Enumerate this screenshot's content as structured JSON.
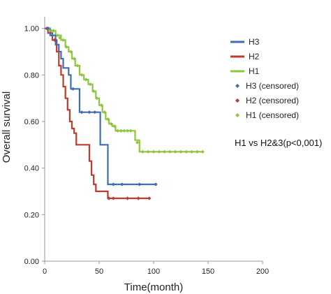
{
  "chart_data": {
    "type": "line",
    "title": "",
    "xlabel": "Time(month)",
    "ylabel": "Overall survival",
    "xlim": [
      0,
      200
    ],
    "ylim": [
      0,
      1.05
    ],
    "xticks": [
      "0",
      "50",
      "100",
      "150",
      "200"
    ],
    "yticks": [
      "0.00",
      "0.20",
      "0.40",
      "0.60",
      "0.80",
      "1.00"
    ],
    "grid": false,
    "legend_position": "right",
    "annotation": "H1 vs H2&3(p<0,001)",
    "series": [
      {
        "name": "H3",
        "color": "#3E6DB5",
        "steps": [
          [
            0,
            1.0
          ],
          [
            5,
            0.97
          ],
          [
            10,
            0.93
          ],
          [
            13,
            0.9
          ],
          [
            15,
            0.87
          ],
          [
            17,
            0.83
          ],
          [
            22,
            0.8
          ],
          [
            24,
            0.74
          ],
          [
            30,
            0.74
          ],
          [
            32,
            0.64
          ],
          [
            50,
            0.64
          ],
          [
            51,
            0.5
          ],
          [
            56,
            0.5
          ],
          [
            58,
            0.33
          ],
          [
            102,
            0.33
          ]
        ],
        "censored": [
          [
            3,
            1.0
          ],
          [
            7,
            0.97
          ],
          [
            26,
            0.74
          ],
          [
            34,
            0.64
          ],
          [
            41,
            0.64
          ],
          [
            46,
            0.64
          ],
          [
            63,
            0.33
          ],
          [
            71,
            0.33
          ],
          [
            87,
            0.33
          ],
          [
            102,
            0.33
          ]
        ]
      },
      {
        "name": "H2",
        "color": "#C0392B",
        "steps": [
          [
            0,
            1.0
          ],
          [
            3,
            0.98
          ],
          [
            7,
            0.95
          ],
          [
            11,
            0.9
          ],
          [
            13,
            0.84
          ],
          [
            15,
            0.8
          ],
          [
            17,
            0.75
          ],
          [
            19,
            0.7
          ],
          [
            21,
            0.65
          ],
          [
            23,
            0.6
          ],
          [
            25,
            0.57
          ],
          [
            27,
            0.55
          ],
          [
            29,
            0.5
          ],
          [
            40,
            0.5
          ],
          [
            41,
            0.43
          ],
          [
            43,
            0.37
          ],
          [
            45,
            0.33
          ],
          [
            47,
            0.3
          ],
          [
            57,
            0.3
          ],
          [
            58,
            0.27
          ],
          [
            96,
            0.27
          ]
        ],
        "censored": [
          [
            2,
            1.0
          ],
          [
            9,
            0.95
          ],
          [
            59,
            0.27
          ],
          [
            63,
            0.27
          ],
          [
            76,
            0.27
          ],
          [
            86,
            0.27
          ],
          [
            96,
            0.27
          ]
        ]
      },
      {
        "name": "H1",
        "color": "#8DC63F",
        "steps": [
          [
            0,
            1.0
          ],
          [
            5,
            0.99
          ],
          [
            10,
            0.97
          ],
          [
            15,
            0.95
          ],
          [
            19,
            0.92
          ],
          [
            22,
            0.9
          ],
          [
            25,
            0.87
          ],
          [
            28,
            0.84
          ],
          [
            32,
            0.8
          ],
          [
            36,
            0.78
          ],
          [
            40,
            0.76
          ],
          [
            44,
            0.73
          ],
          [
            47,
            0.7
          ],
          [
            50,
            0.67
          ],
          [
            53,
            0.64
          ],
          [
            56,
            0.61
          ],
          [
            59,
            0.59
          ],
          [
            62,
            0.58
          ],
          [
            65,
            0.56
          ],
          [
            80,
            0.56
          ],
          [
            83,
            0.52
          ],
          [
            87,
            0.47
          ],
          [
            145,
            0.47
          ]
        ],
        "censored": [
          [
            2,
            1.0
          ],
          [
            4,
            1.0
          ],
          [
            6,
            0.99
          ],
          [
            8,
            0.99
          ],
          [
            12,
            0.97
          ],
          [
            14,
            0.96
          ],
          [
            17,
            0.95
          ],
          [
            20,
            0.92
          ],
          [
            24,
            0.9
          ],
          [
            27,
            0.87
          ],
          [
            30,
            0.84
          ],
          [
            34,
            0.8
          ],
          [
            38,
            0.78
          ],
          [
            42,
            0.76
          ],
          [
            45,
            0.73
          ],
          [
            48,
            0.7
          ],
          [
            52,
            0.67
          ],
          [
            55,
            0.64
          ],
          [
            58,
            0.61
          ],
          [
            61,
            0.59
          ],
          [
            64,
            0.58
          ],
          [
            67,
            0.56
          ],
          [
            70,
            0.56
          ],
          [
            73,
            0.56
          ],
          [
            76,
            0.56
          ],
          [
            79,
            0.56
          ],
          [
            85,
            0.51
          ],
          [
            90,
            0.47
          ],
          [
            95,
            0.47
          ],
          [
            100,
            0.47
          ],
          [
            105,
            0.47
          ],
          [
            110,
            0.47
          ],
          [
            115,
            0.47
          ],
          [
            120,
            0.47
          ],
          [
            125,
            0.47
          ],
          [
            130,
            0.47
          ],
          [
            135,
            0.47
          ],
          [
            140,
            0.47
          ],
          [
            145,
            0.47
          ]
        ]
      }
    ],
    "legend": [
      {
        "label": "H3",
        "kind": "line",
        "color": "#3E6DB5"
      },
      {
        "label": "H2",
        "kind": "line",
        "color": "#C0392B"
      },
      {
        "label": "H1",
        "kind": "line",
        "color": "#8DC63F"
      },
      {
        "label": "H3 (censored)",
        "kind": "marker",
        "color": "#3E6DB5"
      },
      {
        "label": "H2 (censored)",
        "kind": "marker",
        "color": "#C0392B"
      },
      {
        "label": "H1 (censored)",
        "kind": "marker",
        "color": "#8DC63F"
      }
    ]
  }
}
